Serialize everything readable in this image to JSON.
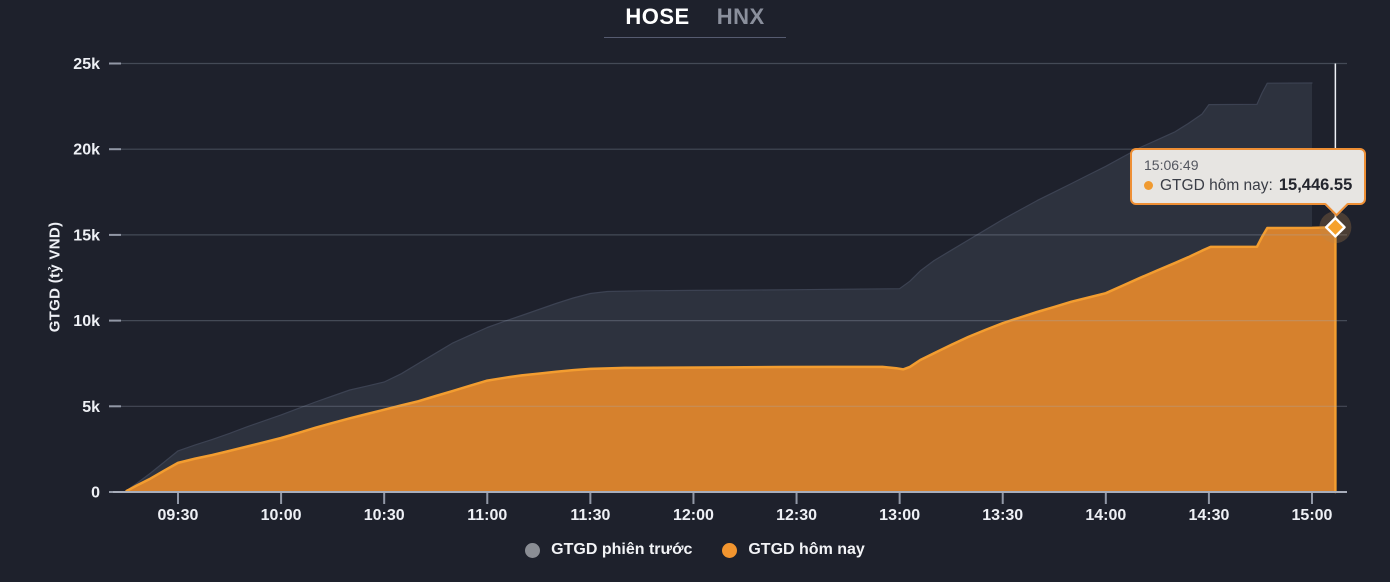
{
  "tabs": {
    "hose": "HOSE",
    "hnx": "HNX"
  },
  "y_axis": {
    "title": "GTGD (tỷ VND)"
  },
  "tooltip": {
    "time": "15:06:49",
    "label": "GTGD hôm nay:",
    "value": "15,446.55",
    "dot_color": "#f09a30"
  },
  "legend": [
    {
      "label": "GTGD phiên trước",
      "color": "#8a8d94"
    },
    {
      "label": "GTGD hôm nay",
      "color": "#f2952f"
    }
  ],
  "chart_data": {
    "type": "area",
    "title": "",
    "ylabel": "GTGD (tỷ VND)",
    "ylim": [
      0,
      25000
    ],
    "x_unit": "minutes_since_midnight",
    "grid": true,
    "legend_position": "bottom",
    "y_ticks": [
      {
        "value": 0,
        "label": "0"
      },
      {
        "value": 5000,
        "label": "5k"
      },
      {
        "value": 10000,
        "label": "10k"
      },
      {
        "value": 15000,
        "label": "15k"
      },
      {
        "value": 20000,
        "label": "20k"
      },
      {
        "value": 25000,
        "label": "25k"
      }
    ],
    "x_ticks": [
      {
        "minutes": 570,
        "label": "09:30"
      },
      {
        "minutes": 600,
        "label": "10:00"
      },
      {
        "minutes": 630,
        "label": "10:30"
      },
      {
        "minutes": 660,
        "label": "11:00"
      },
      {
        "minutes": 690,
        "label": "11:30"
      },
      {
        "minutes": 720,
        "label": "12:00"
      },
      {
        "minutes": 750,
        "label": "12:30"
      },
      {
        "minutes": 780,
        "label": "13:00"
      },
      {
        "minutes": 810,
        "label": "13:30"
      },
      {
        "minutes": 840,
        "label": "14:00"
      },
      {
        "minutes": 870,
        "label": "14:30"
      },
      {
        "minutes": 900,
        "label": "15:00"
      }
    ],
    "series": [
      {
        "name": "GTGD phiên trước",
        "line_color": "#3c4252",
        "fill_color": "#2d323e",
        "points": [
          [
            555,
            80
          ],
          [
            558,
            500
          ],
          [
            562,
            1100
          ],
          [
            566,
            1750
          ],
          [
            570,
            2400
          ],
          [
            575,
            2750
          ],
          [
            580,
            3070
          ],
          [
            585,
            3420
          ],
          [
            590,
            3800
          ],
          [
            595,
            4150
          ],
          [
            600,
            4500
          ],
          [
            605,
            4880
          ],
          [
            610,
            5250
          ],
          [
            615,
            5600
          ],
          [
            620,
            5950
          ],
          [
            625,
            6180
          ],
          [
            630,
            6420
          ],
          [
            635,
            6900
          ],
          [
            640,
            7500
          ],
          [
            645,
            8100
          ],
          [
            650,
            8700
          ],
          [
            655,
            9150
          ],
          [
            660,
            9600
          ],
          [
            665,
            9960
          ],
          [
            670,
            10300
          ],
          [
            675,
            10650
          ],
          [
            680,
            11000
          ],
          [
            685,
            11320
          ],
          [
            690,
            11580
          ],
          [
            695,
            11700
          ],
          [
            705,
            11740
          ],
          [
            720,
            11760
          ],
          [
            735,
            11780
          ],
          [
            750,
            11800
          ],
          [
            765,
            11830
          ],
          [
            780,
            11860
          ],
          [
            783,
            12300
          ],
          [
            786,
            12900
          ],
          [
            790,
            13500
          ],
          [
            795,
            14100
          ],
          [
            800,
            14700
          ],
          [
            805,
            15300
          ],
          [
            810,
            15900
          ],
          [
            815,
            16450
          ],
          [
            820,
            17000
          ],
          [
            825,
            17500
          ],
          [
            830,
            18000
          ],
          [
            835,
            18500
          ],
          [
            840,
            19000
          ],
          [
            845,
            19550
          ],
          [
            850,
            20100
          ],
          [
            855,
            20550
          ],
          [
            860,
            21000
          ],
          [
            864,
            21500
          ],
          [
            868,
            22050
          ],
          [
            870,
            22600
          ],
          [
            884,
            22620
          ],
          [
            885.5,
            23300
          ],
          [
            887,
            23850
          ],
          [
            900,
            23860
          ]
        ]
      },
      {
        "name": "GTGD hôm nay",
        "line_color": "#f39d30",
        "fill_color": "#d6812d",
        "points": [
          [
            555,
            60
          ],
          [
            558,
            380
          ],
          [
            562,
            780
          ],
          [
            566,
            1250
          ],
          [
            570,
            1700
          ],
          [
            575,
            1950
          ],
          [
            580,
            2160
          ],
          [
            585,
            2400
          ],
          [
            590,
            2650
          ],
          [
            595,
            2900
          ],
          [
            600,
            3150
          ],
          [
            605,
            3450
          ],
          [
            610,
            3750
          ],
          [
            615,
            4030
          ],
          [
            620,
            4300
          ],
          [
            625,
            4550
          ],
          [
            630,
            4800
          ],
          [
            635,
            5050
          ],
          [
            640,
            5300
          ],
          [
            645,
            5600
          ],
          [
            650,
            5900
          ],
          [
            655,
            6200
          ],
          [
            660,
            6500
          ],
          [
            665,
            6660
          ],
          [
            670,
            6800
          ],
          [
            675,
            6910
          ],
          [
            680,
            7010
          ],
          [
            685,
            7110
          ],
          [
            690,
            7180
          ],
          [
            700,
            7240
          ],
          [
            715,
            7260
          ],
          [
            730,
            7270
          ],
          [
            745,
            7290
          ],
          [
            760,
            7300
          ],
          [
            775,
            7300
          ],
          [
            779,
            7220
          ],
          [
            781,
            7150
          ],
          [
            783,
            7300
          ],
          [
            786,
            7700
          ],
          [
            790,
            8100
          ],
          [
            795,
            8580
          ],
          [
            800,
            9050
          ],
          [
            805,
            9460
          ],
          [
            810,
            9850
          ],
          [
            815,
            10180
          ],
          [
            820,
            10500
          ],
          [
            825,
            10800
          ],
          [
            830,
            11100
          ],
          [
            835,
            11350
          ],
          [
            840,
            11600
          ],
          [
            845,
            12050
          ],
          [
            850,
            12500
          ],
          [
            855,
            12930
          ],
          [
            860,
            13350
          ],
          [
            864,
            13700
          ],
          [
            868,
            14080
          ],
          [
            870.5,
            14300
          ],
          [
            884,
            14310
          ],
          [
            885.5,
            14900
          ],
          [
            887,
            15400
          ],
          [
            900,
            15410
          ],
          [
            906.8,
            15446.55
          ]
        ]
      }
    ],
    "marker": {
      "series": "GTGD hôm nay",
      "time": "15:06:49",
      "minutes": 906.8,
      "value": 15446.55,
      "color": "#f6a12b"
    },
    "crosshair_color": "#eef1f6",
    "grid_color": "rgba(160,168,185,0.30)",
    "axis_color": "#a8adba",
    "tick_color": "#9298a6",
    "label_color": "#eef0f5"
  }
}
